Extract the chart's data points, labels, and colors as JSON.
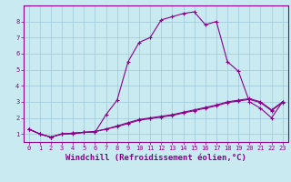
{
  "title": "",
  "xlabel": "Windchill (Refroidissement éolien,°C)",
  "ylabel": "",
  "background_color": "#c8eaf0",
  "grid_color": "#a0c8d8",
  "line_color": "#8b008b",
  "spine_color": "#8b008b",
  "xlim": [
    -0.5,
    23.5
  ],
  "ylim": [
    0.5,
    9.0
  ],
  "xticks": [
    0,
    1,
    2,
    3,
    4,
    5,
    6,
    7,
    8,
    9,
    10,
    11,
    12,
    13,
    14,
    15,
    16,
    17,
    18,
    19,
    20,
    21,
    22,
    23
  ],
  "yticks": [
    1,
    2,
    3,
    4,
    5,
    6,
    7,
    8
  ],
  "series": [
    {
      "x": [
        0,
        1,
        2,
        3,
        4,
        5,
        6,
        7,
        8,
        9,
        10,
        11,
        12,
        13,
        14,
        15,
        16,
        17,
        18,
        19,
        20,
        21,
        22,
        23
      ],
      "y": [
        1.3,
        1.0,
        0.8,
        1.0,
        1.0,
        1.1,
        1.1,
        2.2,
        3.1,
        5.5,
        6.7,
        7.0,
        8.1,
        8.3,
        8.5,
        8.6,
        7.8,
        8.0,
        5.5,
        4.9,
        3.0,
        2.6,
        2.0,
        3.0
      ]
    },
    {
      "x": [
        0,
        1,
        2,
        3,
        4,
        5,
        6,
        7,
        8,
        9,
        10,
        11,
        12,
        13,
        14,
        15,
        16,
        17,
        18,
        19,
        20,
        21,
        22,
        23
      ],
      "y": [
        1.3,
        1.0,
        0.8,
        1.0,
        1.05,
        1.1,
        1.15,
        1.3,
        1.5,
        1.7,
        1.9,
        2.0,
        2.1,
        2.2,
        2.35,
        2.5,
        2.65,
        2.8,
        3.0,
        3.1,
        3.2,
        3.0,
        2.5,
        3.0
      ]
    },
    {
      "x": [
        0,
        1,
        2,
        3,
        4,
        5,
        6,
        7,
        8,
        9,
        10,
        11,
        12,
        13,
        14,
        15,
        16,
        17,
        18,
        19,
        20,
        21,
        22,
        23
      ],
      "y": [
        1.3,
        1.0,
        0.8,
        1.0,
        1.05,
        1.1,
        1.15,
        1.3,
        1.45,
        1.65,
        1.85,
        1.95,
        2.05,
        2.15,
        2.3,
        2.45,
        2.6,
        2.75,
        2.95,
        3.05,
        3.15,
        2.95,
        2.45,
        2.95
      ]
    }
  ],
  "marker": "+",
  "markersize": 3,
  "linewidth": 0.8,
  "tick_fontsize": 5,
  "xlabel_fontsize": 6.5,
  "font_color": "#8b008b"
}
